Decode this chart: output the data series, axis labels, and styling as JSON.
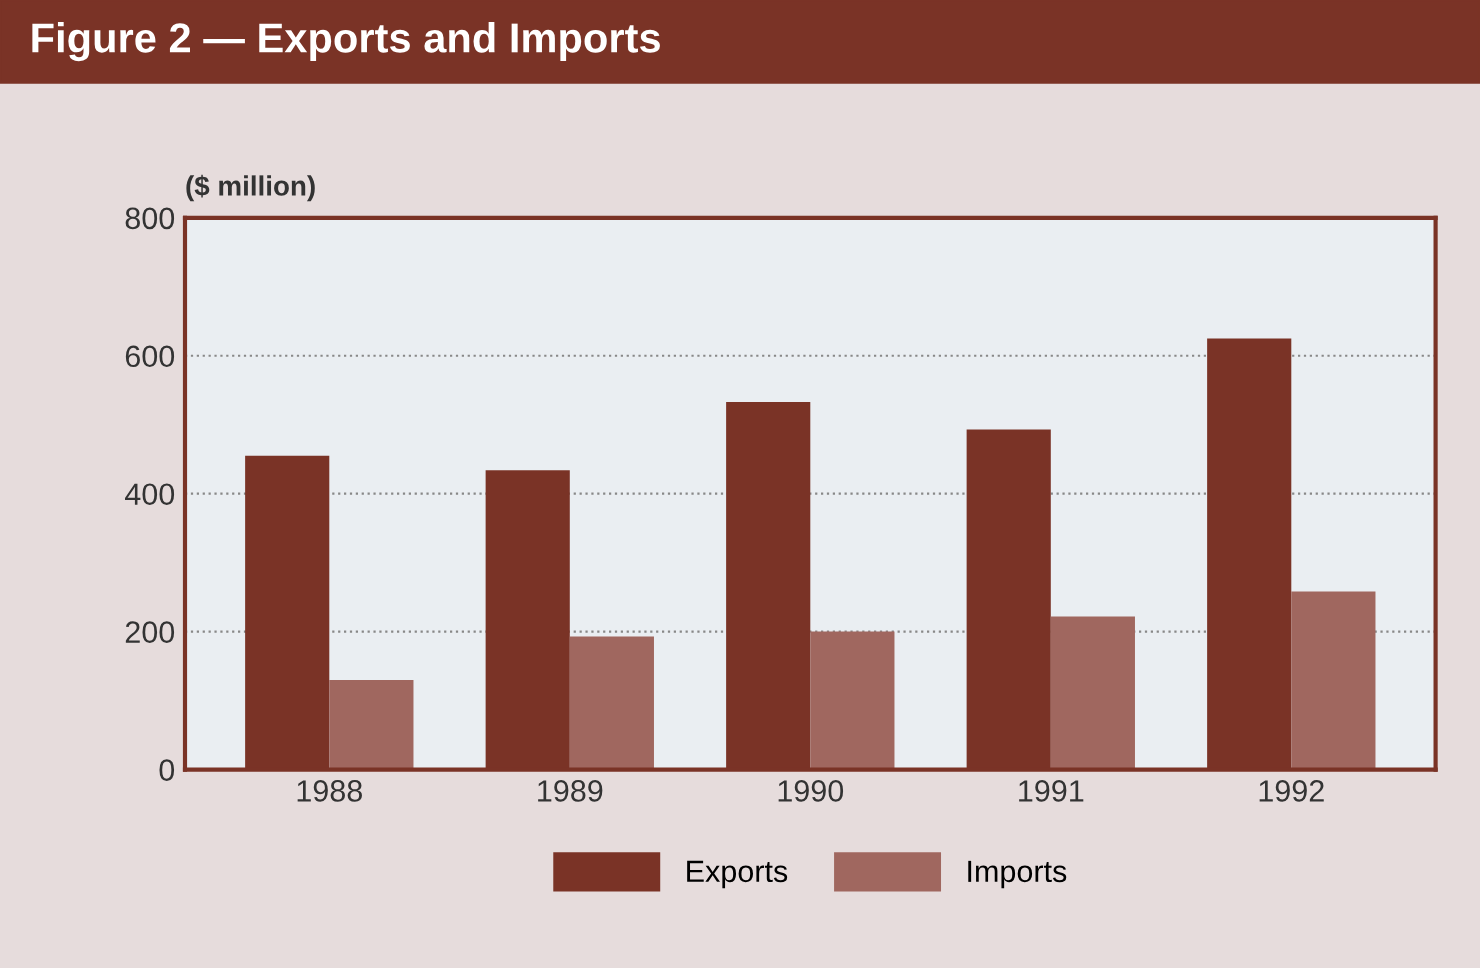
{
  "chart_data": {
    "type": "bar",
    "title": "Figure 2 — Exports and Imports",
    "ylabel": "($ million)",
    "categories": [
      "1988",
      "1989",
      "1990",
      "1991",
      "1992"
    ],
    "series": [
      {
        "name": "Exports",
        "color": "#7a3326",
        "values": [
          455,
          434,
          533,
          493,
          625
        ]
      },
      {
        "name": "Imports",
        "color": "#a0675f",
        "values": [
          130,
          193,
          200,
          222,
          258
        ]
      }
    ],
    "ylim": [
      0,
      800
    ],
    "yticks": [
      0,
      200,
      400,
      600,
      800
    ],
    "grid": "y",
    "legend": "bottom"
  }
}
